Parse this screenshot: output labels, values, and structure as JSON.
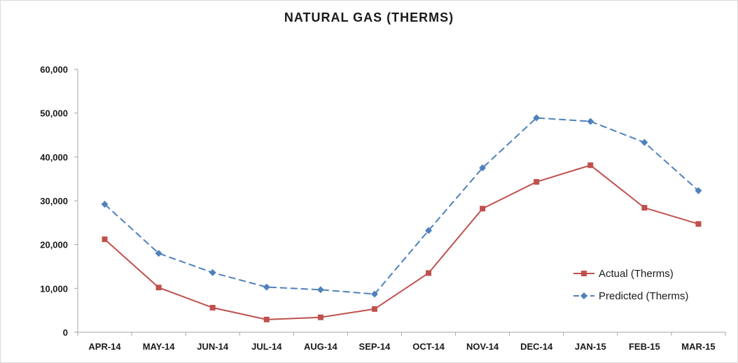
{
  "chart_data": {
    "type": "line",
    "title": "NATURAL GAS (THERMS)",
    "xlabel": "",
    "ylabel": "",
    "categories": [
      "APR-14",
      "MAY-14",
      "JUN-14",
      "JUL-14",
      "AUG-14",
      "SEP-14",
      "OCT-14",
      "NOV-14",
      "DEC-14",
      "JAN-15",
      "FEB-15",
      "MAR-15"
    ],
    "ylim": [
      0,
      60000
    ],
    "yticks": [
      "0",
      "10,000",
      "20,000",
      "30,000",
      "40,000",
      "50,000",
      "60,000"
    ],
    "ytick_values": [
      0,
      10000,
      20000,
      30000,
      40000,
      50000,
      60000
    ],
    "grid": false,
    "legend_position": "bottom-right",
    "series": [
      {
        "name": "Actual (Therms)",
        "color": "#c0504d",
        "marker": "square",
        "dash": "solid",
        "values": [
          21200,
          10200,
          5600,
          2900,
          3400,
          5300,
          13500,
          28200,
          34300,
          38100,
          28400,
          24700
        ]
      },
      {
        "name": "Predicted (Therms)",
        "color": "#4f81bd",
        "marker": "diamond",
        "dash": "dashed",
        "values": [
          29200,
          18000,
          13600,
          10300,
          9700,
          8700,
          23200,
          37500,
          48900,
          48100,
          43300,
          32300
        ]
      }
    ]
  }
}
